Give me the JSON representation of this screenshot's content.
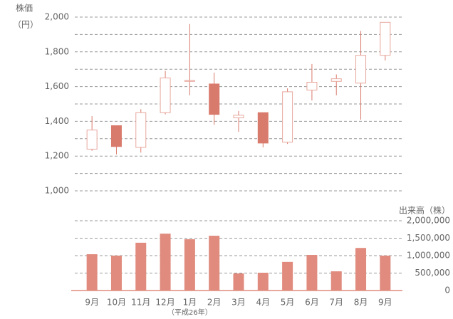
{
  "chart_data": [
    {
      "type": "candlestick",
      "ylabel": [
        "株価",
        "（円）"
      ],
      "categories": [
        "9月",
        "10月",
        "11月",
        "12月",
        "1月",
        "2月",
        "3月",
        "4月",
        "5月",
        "6月",
        "7月",
        "8月",
        "9月"
      ],
      "annotation": "（平成26年）",
      "open": [
        1240,
        1375,
        1250,
        1450,
        1630,
        1615,
        1420,
        1450,
        1280,
        1580,
        1630,
        1620,
        1780
      ],
      "high": [
        1430,
        1375,
        1470,
        1690,
        1960,
        1680,
        1460,
        1450,
        1590,
        1730,
        1670,
        1920,
        1970
      ],
      "low": [
        1230,
        1210,
        1220,
        1440,
        1550,
        1380,
        1340,
        1250,
        1270,
        1520,
        1550,
        1410,
        1750
      ],
      "close": [
        1350,
        1255,
        1450,
        1650,
        1635,
        1440,
        1435,
        1275,
        1570,
        1625,
        1645,
        1780,
        1970
      ],
      "color": "#d97b6c",
      "ylim": [
        1000,
        2000
      ],
      "yticks": [
        {
          "value": 1000,
          "label": "1,000"
        },
        {
          "value": 1200,
          "label": "1,200"
        },
        {
          "value": 1400,
          "label": "1,400"
        },
        {
          "value": 1600,
          "label": "1,600"
        },
        {
          "value": 1800,
          "label": "1,800"
        },
        {
          "value": 2000,
          "label": "2,000"
        }
      ],
      "ygrid": [
        1000,
        1100,
        1200,
        1300,
        1400,
        1500,
        1600,
        1700,
        1800,
        1900,
        2000
      ]
    },
    {
      "type": "bar",
      "ylabel": "出来高（株）",
      "values": [
        1040000,
        1000000,
        1370000,
        1630000,
        1470000,
        1570000,
        490000,
        510000,
        820000,
        1020000,
        550000,
        1220000,
        1000000
      ],
      "color": "#e08b7e",
      "ylim": [
        0,
        2000000
      ],
      "yticks": [
        0,
        {
          "value": 500000,
          "label": "500,000"
        },
        {
          "value": 1000000,
          "label": "1,000,000"
        },
        {
          "value": 1500000,
          "label": "1,500,000"
        },
        {
          "value": 2000000,
          "label": "2,000,000"
        }
      ]
    }
  ]
}
